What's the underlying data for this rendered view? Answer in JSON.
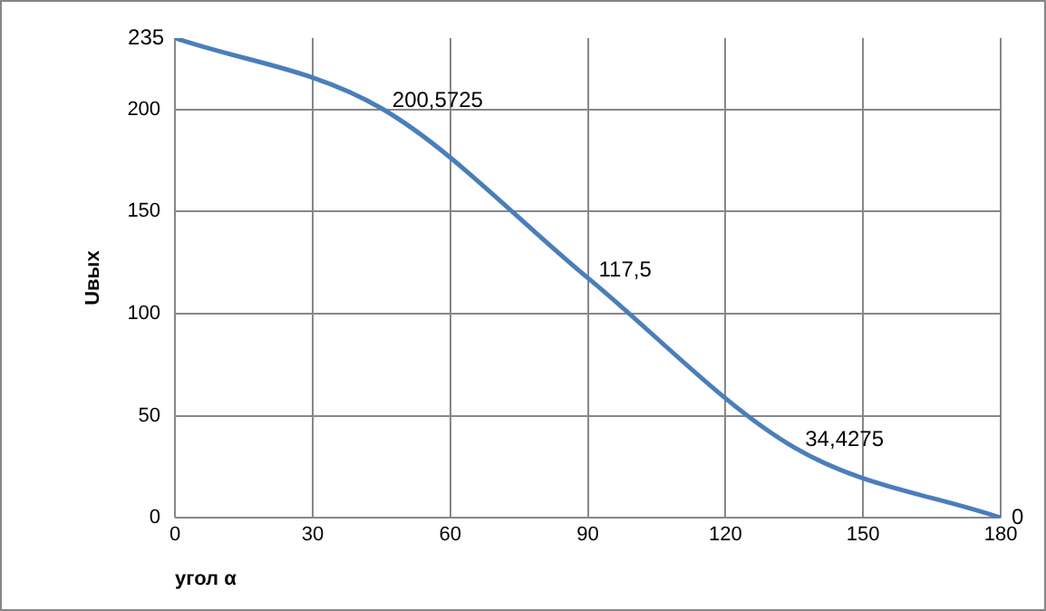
{
  "chart_data": {
    "type": "line",
    "xlabel": "угол α",
    "ylabel": "Uвых",
    "x": [
      0,
      45,
      90,
      135,
      180
    ],
    "series": [
      {
        "color": "#4a7ebb",
        "values": [
          235,
          200.5725,
          117.5,
          34.4275,
          0
        ],
        "value_labels": [
          "235",
          "200,5725",
          "117,5",
          "34,4275",
          "0"
        ]
      }
    ],
    "xlim": [
      0,
      180
    ],
    "xticks": [
      0,
      30,
      60,
      90,
      120,
      150,
      180
    ],
    "ylim": [
      0,
      235
    ],
    "yticks": [
      0,
      50,
      100,
      150,
      200
    ],
    "grid": true,
    "legend": false,
    "marker": "none",
    "line_style": "solid"
  }
}
